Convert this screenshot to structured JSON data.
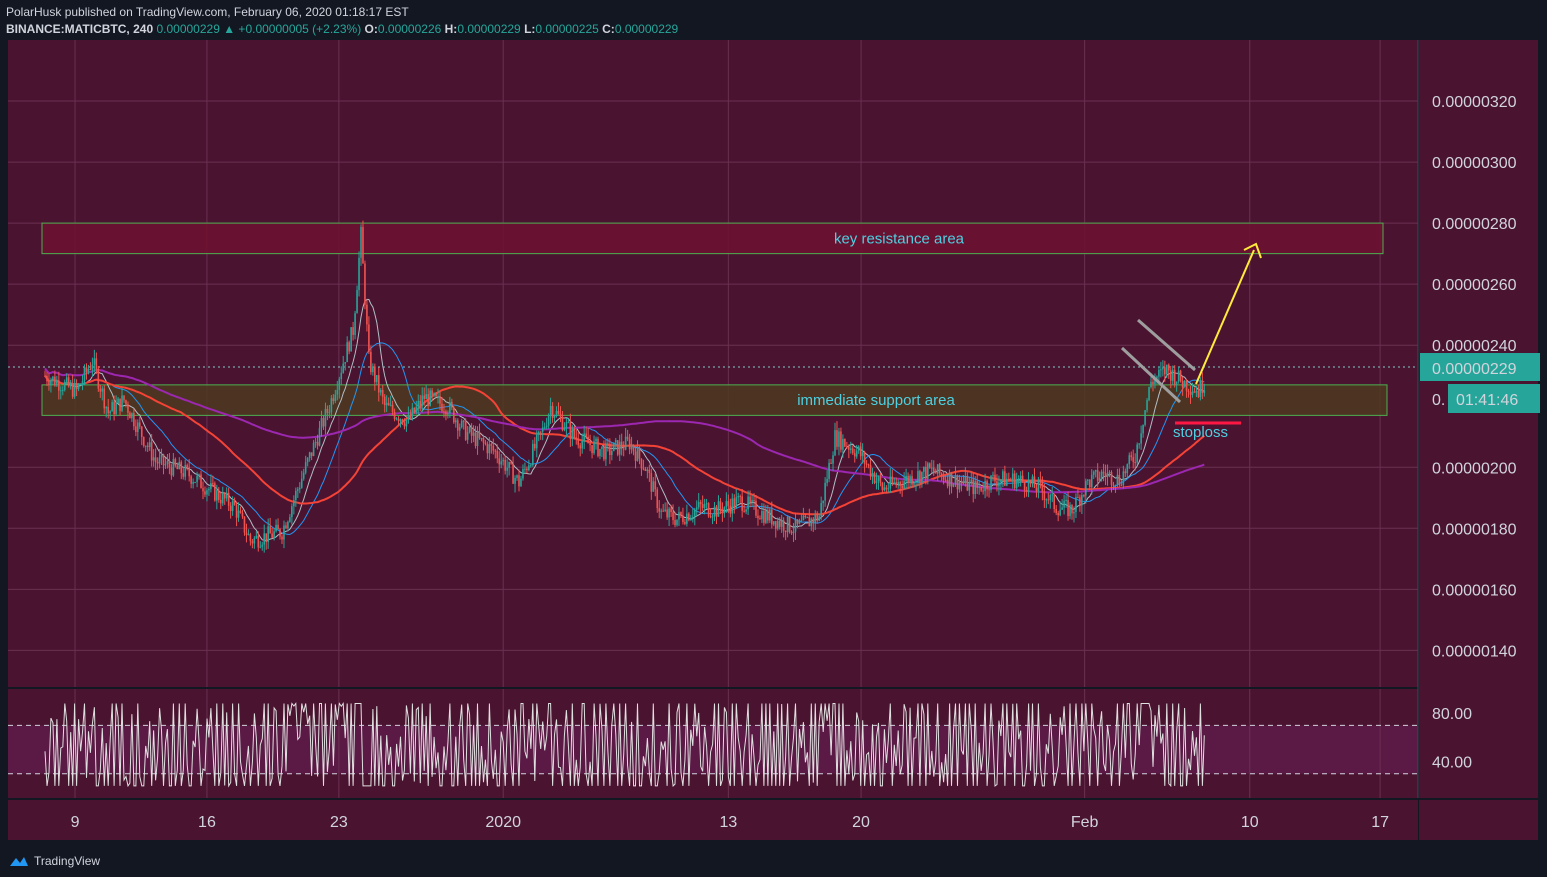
{
  "header": {
    "line1": "PolarHusk published on TradingView.com, February 06, 2020 01:18:17 EST",
    "symbol": "BINANCE:MATICBTC, 240",
    "last": "0.00000229",
    "change": "▲ +0.00000005 (+2.23%)",
    "o_label": "O:",
    "o_val": "0.00000226",
    "h_label": "H:",
    "h_val": "0.00000229",
    "l_label": "L:",
    "l_val": "0.00000225",
    "c_label": "C:",
    "c_val": "0.00000229"
  },
  "footer": {
    "brand": "TradingView",
    "logo_icon": "tradingview-logo-icon"
  },
  "colors": {
    "background": "#4a1430",
    "rsi_band": "#5a1a45",
    "up": "#26a69a",
    "down": "#ef5350",
    "ma200": "#9c27b0",
    "ma_red": "#f44336",
    "ma_blue": "#2196f3",
    "ma_white": "#b0bec5",
    "resistance_fill": "#6e1030",
    "support_fill": "#4e3a20",
    "zone_border": "#4caf50",
    "annotation": "#4dd0e1",
    "arrow": "#ffeb3b",
    "price_badge": "#26a69a"
  },
  "price_badge": "0.00000229",
  "timer_badge_prefix": "0.",
  "timer_badge": "01:41:46",
  "annotations": {
    "resistance": "key resistance area",
    "support": "immediate support area",
    "stoploss": "stoploss"
  },
  "chart_data": [
    {
      "type": "candlestick",
      "symbol": "BINANCE:MATICBTC",
      "interval": "240",
      "y_ticks": [
        "0.00000320",
        "0.00000300",
        "0.00000280",
        "0.00000260",
        "0.00000240",
        "0.00000200",
        "0.00000180",
        "0.00000160",
        "0.00000140"
      ],
      "ylim": [
        1.28e-06,
        3.4e-06
      ],
      "x_ticks": [
        "9",
        "16",
        "23",
        "2020",
        "13",
        "20",
        "Feb",
        "10",
        "17"
      ],
      "zones": [
        {
          "label": "key resistance area",
          "range": [
            2.7e-06,
            2.8e-06
          ]
        },
        {
          "label": "immediate support area",
          "range": [
            2.17e-06,
            2.27e-06
          ]
        }
      ],
      "stoploss": 2.145e-06,
      "close_path": [
        [
          0,
          2.3e-06
        ],
        [
          4,
          2.25e-06
        ],
        [
          6,
          2.35e-06
        ],
        [
          8,
          2.18e-06
        ],
        [
          10,
          2.22e-06
        ],
        [
          14,
          2.02e-06
        ],
        [
          18,
          1.98e-06
        ],
        [
          24,
          1.87e-06
        ],
        [
          26,
          1.76e-06
        ],
        [
          30,
          1.79e-06
        ],
        [
          33,
          2e-06
        ],
        [
          36,
          2.2e-06
        ],
        [
          39,
          2.45e-06
        ],
        [
          40,
          2.76e-06
        ],
        [
          41,
          2.35e-06
        ],
        [
          43,
          2.2e-06
        ],
        [
          46,
          2.15e-06
        ],
        [
          48,
          2.23e-06
        ],
        [
          51,
          2.2e-06
        ],
        [
          53,
          2.12e-06
        ],
        [
          57,
          2.05e-06
        ],
        [
          60,
          1.95e-06
        ],
        [
          63,
          2.12e-06
        ],
        [
          64,
          2.2e-06
        ],
        [
          67,
          2.1e-06
        ],
        [
          71,
          2.05e-06
        ],
        [
          74,
          2.08e-06
        ],
        [
          76,
          2e-06
        ],
        [
          78,
          1.85e-06
        ],
        [
          80,
          1.83e-06
        ],
        [
          83,
          1.87e-06
        ],
        [
          85,
          1.86e-06
        ],
        [
          88,
          1.89e-06
        ],
        [
          90,
          1.86e-06
        ],
        [
          93,
          1.82e-06
        ],
        [
          95,
          1.8e-06
        ],
        [
          98,
          1.84e-06
        ],
        [
          100,
          2.1e-06
        ],
        [
          103,
          2.05e-06
        ],
        [
          106,
          1.93e-06
        ],
        [
          109,
          1.96e-06
        ],
        [
          112,
          1.99e-06
        ],
        [
          115,
          1.96e-06
        ],
        [
          118,
          1.93e-06
        ],
        [
          120,
          1.96e-06
        ],
        [
          123,
          1.96e-06
        ],
        [
          126,
          1.93e-06
        ],
        [
          128,
          1.87e-06
        ],
        [
          130,
          1.86e-06
        ],
        [
          132,
          1.95e-06
        ],
        [
          134,
          1.98e-06
        ],
        [
          136,
          1.96e-06
        ],
        [
          138,
          2.04e-06
        ],
        [
          140,
          2.28e-06
        ],
        [
          142,
          2.32e-06
        ],
        [
          144,
          2.28e-06
        ],
        [
          146,
          2.25e-06
        ],
        [
          147,
          2.29e-06
        ]
      ],
      "rsi": {
        "levels": [
          70,
          30
        ],
        "y_ticks": [
          "80.00",
          "40.00"
        ],
        "ylim": [
          10,
          100
        ]
      }
    }
  ]
}
